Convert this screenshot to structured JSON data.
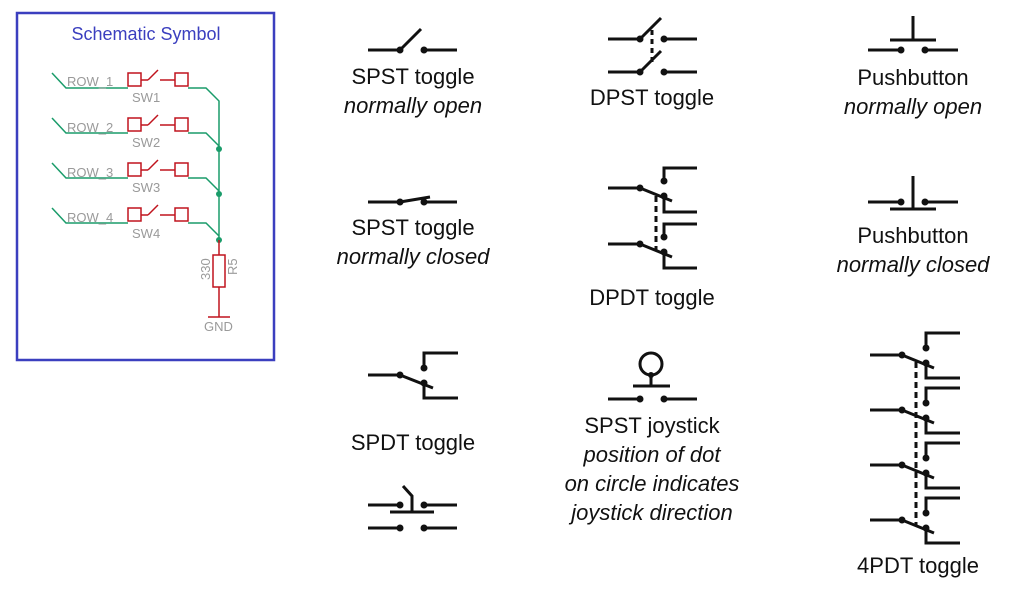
{
  "panel": {
    "title": "Schematic Symbol",
    "rows": [
      "ROW_1",
      "ROW_2",
      "ROW_3",
      "ROW_4"
    ],
    "switches": [
      "SW1",
      "SW2",
      "SW3",
      "SW4"
    ],
    "resistor_value": "330",
    "resistor_ref": "R5",
    "ground_label": "GND",
    "colors": {
      "border": "#3b3fbf",
      "title": "#3b3fbf",
      "wire": "#1a9c6a",
      "part": "#c0141e",
      "pin_text": "#9a9a9a"
    }
  },
  "symbols": {
    "spst_no": {
      "line1": "SPST toggle",
      "line2": "normally open"
    },
    "spst_nc": {
      "line1": "SPST toggle",
      "line2": "normally closed"
    },
    "spdt": {
      "line1": "SPDT toggle"
    },
    "dpst": {
      "line1": "DPST toggle"
    },
    "dpdt": {
      "line1": "DPDT toggle"
    },
    "joystick": {
      "line1": "SPST joystick",
      "line2": "position of dot",
      "line3": "on circle indicates",
      "line4": "joystick direction"
    },
    "pb_no": {
      "line1": "Pushbutton",
      "line2": "normally open"
    },
    "pb_nc": {
      "line1": "Pushbutton",
      "line2": "normally closed"
    },
    "fourpdt": {
      "line1": "4PDT toggle"
    }
  }
}
